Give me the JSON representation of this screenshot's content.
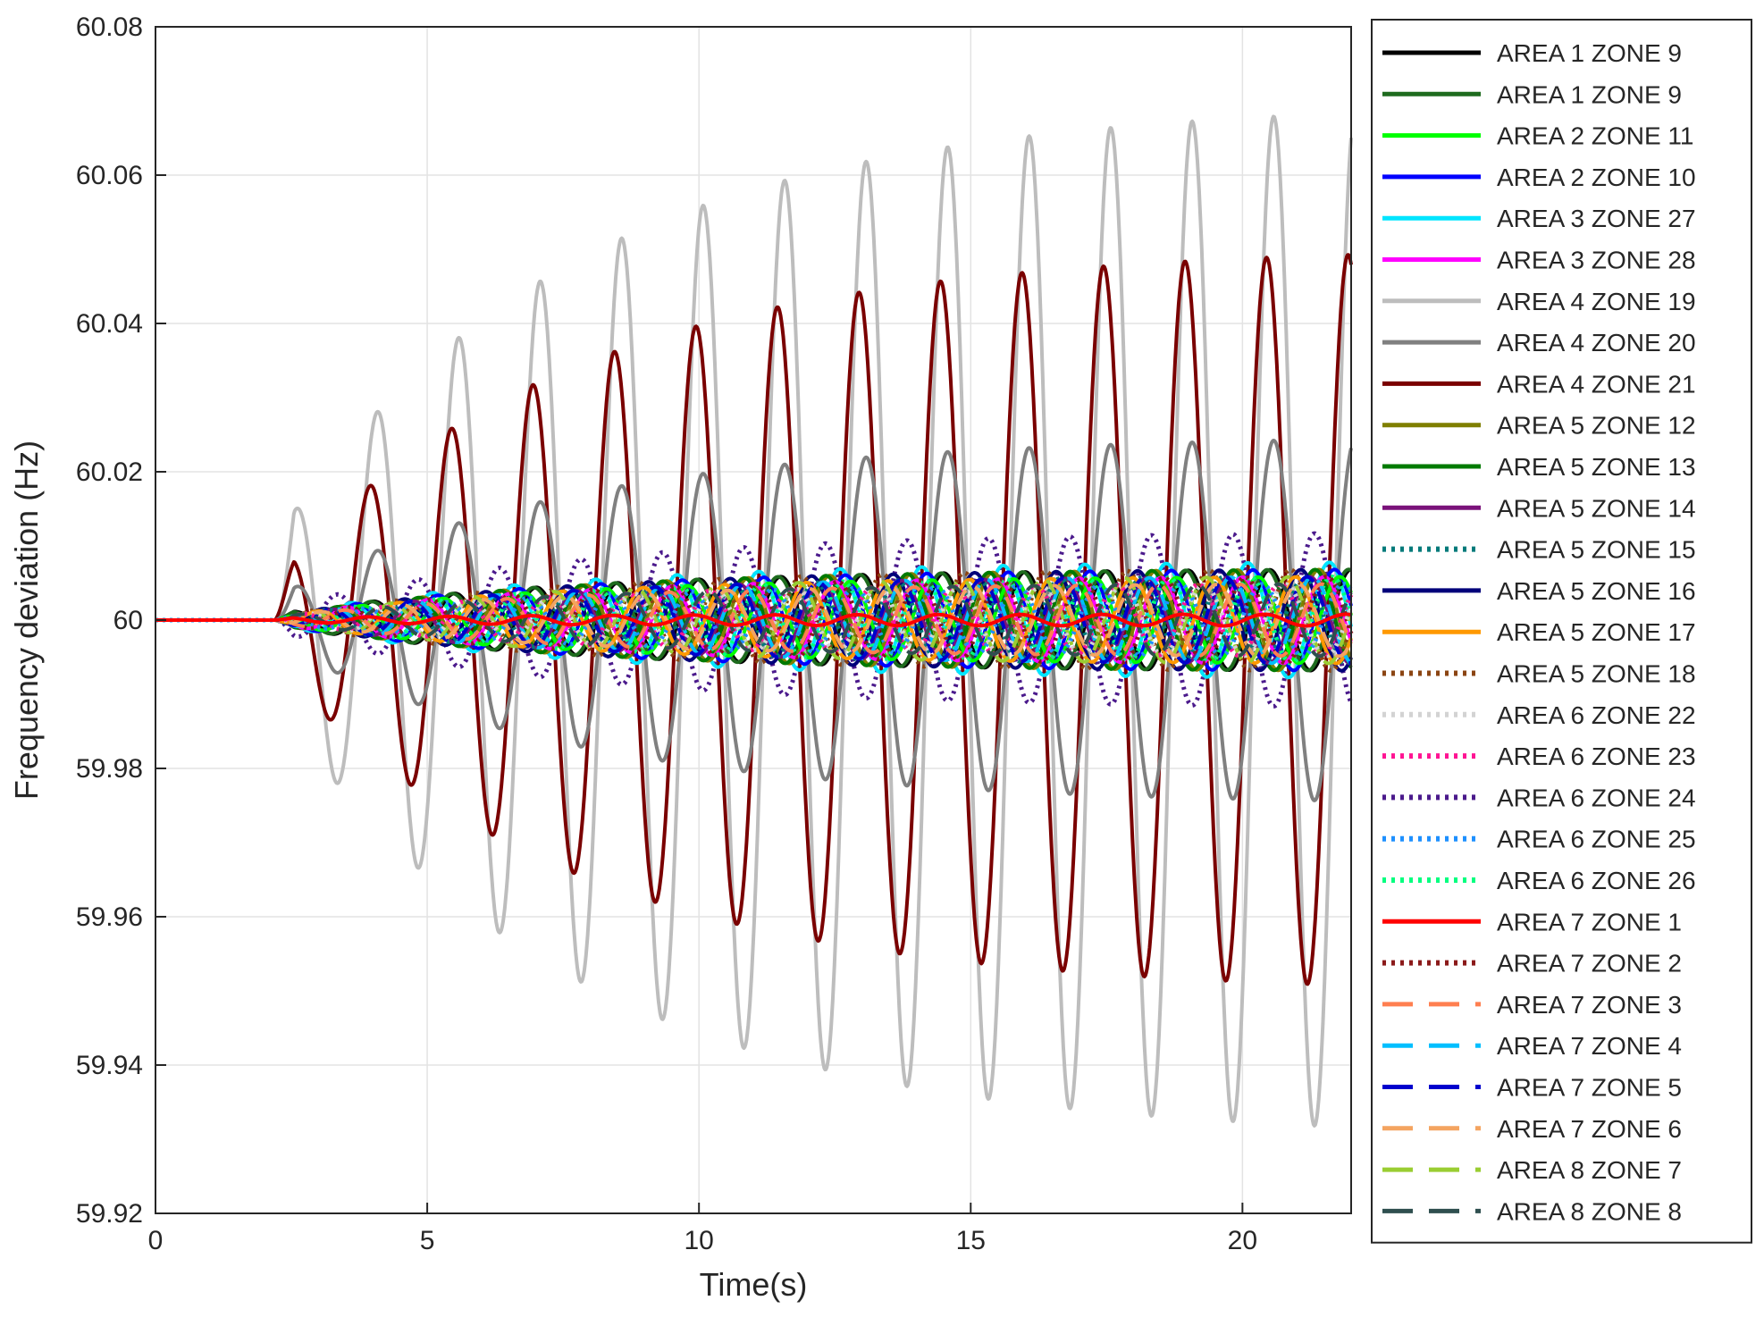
{
  "chart_data": {
    "type": "line",
    "title": "",
    "xlabel": "Time(s)",
    "ylabel": "Frequency deviation (Hz)",
    "xlim": [
      0,
      22
    ],
    "ylim": [
      59.92,
      60.08
    ],
    "xticks": [
      0,
      5,
      10,
      15,
      20
    ],
    "xtick_labels": [
      "0",
      "5",
      "10",
      "15",
      "20"
    ],
    "yticks": [
      59.92,
      59.94,
      59.96,
      59.98,
      60,
      60.02,
      60.04,
      60.06,
      60.08
    ],
    "ytick_labels": [
      "59.92",
      "59.94",
      "59.96",
      "59.98",
      "60",
      "60.02",
      "60.04",
      "60.06",
      "60.08"
    ],
    "grid": true,
    "legend_position": "outside-right",
    "series": [
      {
        "name": "AREA 1 ZONE 9",
        "color": "#000000",
        "style": "solid",
        "amplitude": 0.0008,
        "final_amplitude": 0.007,
        "phase": 0.3
      },
      {
        "name": "AREA 1 ZONE 9",
        "color": "#1e6b1e",
        "style": "solid",
        "amplitude": 0.0008,
        "final_amplitude": 0.007,
        "phase": 0.5
      },
      {
        "name": "AREA 2 ZONE 11",
        "color": "#00ff00",
        "style": "solid",
        "amplitude": 0.0006,
        "final_amplitude": 0.006,
        "phase": 1.2
      },
      {
        "name": "AREA 2 ZONE 10",
        "color": "#0000ff",
        "style": "solid",
        "amplitude": 0.0007,
        "final_amplitude": 0.007,
        "phase": 1.6
      },
      {
        "name": "AREA 3 ZONE 27",
        "color": "#00e5ff",
        "style": "solid",
        "amplitude": 0.0007,
        "final_amplitude": 0.008,
        "phase": 2.0
      },
      {
        "name": "AREA 3 ZONE 28",
        "color": "#ff00ff",
        "style": "solid",
        "amplitude": 0.0006,
        "final_amplitude": 0.006,
        "phase": 2.4
      },
      {
        "name": "AREA 4 ZONE 19",
        "color": "#bdbdbd",
        "style": "solid",
        "amplitude": 0.011,
        "final_amplitude": 0.07,
        "phase": 0.0
      },
      {
        "name": "AREA 4 ZONE 20",
        "color": "#808080",
        "style": "solid",
        "amplitude": 0.003,
        "final_amplitude": 0.025,
        "phase": 0.0
      },
      {
        "name": "AREA 4 ZONE 21",
        "color": "#7a0000",
        "style": "solid",
        "amplitude": 0.006,
        "final_amplitude": 0.0505,
        "phase": 0.55
      },
      {
        "name": "AREA 5 ZONE 12",
        "color": "#7f7f00",
        "style": "solid",
        "amplitude": 0.0006,
        "final_amplitude": 0.007,
        "phase": 2.8
      },
      {
        "name": "AREA 5 ZONE 13",
        "color": "#007a00",
        "style": "solid",
        "amplitude": 0.0006,
        "final_amplitude": 0.007,
        "phase": 3.1
      },
      {
        "name": "AREA 5 ZONE 14",
        "color": "#7a127a",
        "style": "solid",
        "amplitude": 0.0005,
        "final_amplitude": 0.006,
        "phase": 3.5
      },
      {
        "name": "AREA 5 ZONE 15",
        "color": "#007a7a",
        "style": "dotted",
        "amplitude": 0.0005,
        "final_amplitude": 0.006,
        "phase": 3.9
      },
      {
        "name": "AREA 5 ZONE 16",
        "color": "#00007a",
        "style": "solid",
        "amplitude": 0.0006,
        "final_amplitude": 0.007,
        "phase": 4.2
      },
      {
        "name": "AREA 5 ZONE 17",
        "color": "#ff9900",
        "style": "solid",
        "amplitude": 0.0005,
        "final_amplitude": 0.006,
        "phase": 4.6
      },
      {
        "name": "AREA 5 ZONE 18",
        "color": "#8b4513",
        "style": "dotted",
        "amplitude": 0.0005,
        "final_amplitude": 0.007,
        "phase": 5.0
      },
      {
        "name": "AREA 6 ZONE 22",
        "color": "#d3d3d3",
        "style": "dotted",
        "amplitude": 0.0004,
        "final_amplitude": 0.005,
        "phase": 5.4
      },
      {
        "name": "AREA 6 ZONE 23",
        "color": "#ff1493",
        "style": "dotted",
        "amplitude": 0.0004,
        "final_amplitude": 0.005,
        "phase": 5.8
      },
      {
        "name": "AREA 6 ZONE 24",
        "color": "#4b1a8c",
        "style": "dotted",
        "amplitude": 0.0015,
        "final_amplitude": 0.012,
        "phase": 3.14
      },
      {
        "name": "AREA 6 ZONE 25",
        "color": "#1e90ff",
        "style": "dotted",
        "amplitude": 0.0004,
        "final_amplitude": 0.005,
        "phase": 0.9
      },
      {
        "name": "AREA 6 ZONE 26",
        "color": "#00ff7f",
        "style": "dotted",
        "amplitude": 0.0005,
        "final_amplitude": 0.006,
        "phase": 1.8
      },
      {
        "name": "AREA 7 ZONE 1",
        "color": "#ff0000",
        "style": "solid",
        "amplitude": 0.0003,
        "final_amplitude": 0.0008,
        "phase": 0.7
      },
      {
        "name": "AREA 7 ZONE 2",
        "color": "#8b1a1a",
        "style": "dotted",
        "amplitude": 0.0005,
        "final_amplitude": 0.006,
        "phase": 2.2
      },
      {
        "name": "AREA 7 ZONE 3",
        "color": "#ff7f50",
        "style": "dashed",
        "amplitude": 0.0004,
        "final_amplitude": 0.005,
        "phase": 2.6
      },
      {
        "name": "AREA 7 ZONE 4",
        "color": "#00bfff",
        "style": "dashed",
        "amplitude": 0.0005,
        "final_amplitude": 0.006,
        "phase": 3.3
      },
      {
        "name": "AREA 7 ZONE 5",
        "color": "#0000cd",
        "style": "dashed",
        "amplitude": 0.0005,
        "final_amplitude": 0.006,
        "phase": 3.7
      },
      {
        "name": "AREA 7 ZONE 6",
        "color": "#f4a460",
        "style": "dashed",
        "amplitude": 0.0005,
        "final_amplitude": 0.005,
        "phase": 4.4
      },
      {
        "name": "AREA 8 ZONE 7",
        "color": "#9acd32",
        "style": "dashed",
        "amplitude": 0.0005,
        "final_amplitude": 0.006,
        "phase": 5.2
      },
      {
        "name": "AREA 8 ZONE 8",
        "color": "#2f4f4f",
        "style": "dashed",
        "amplitude": 0.0004,
        "final_amplitude": 0.005,
        "phase": 5.9
      }
    ],
    "disturbance_time": 2.2,
    "oscillation_period": 1.5,
    "base_value": 60
  }
}
